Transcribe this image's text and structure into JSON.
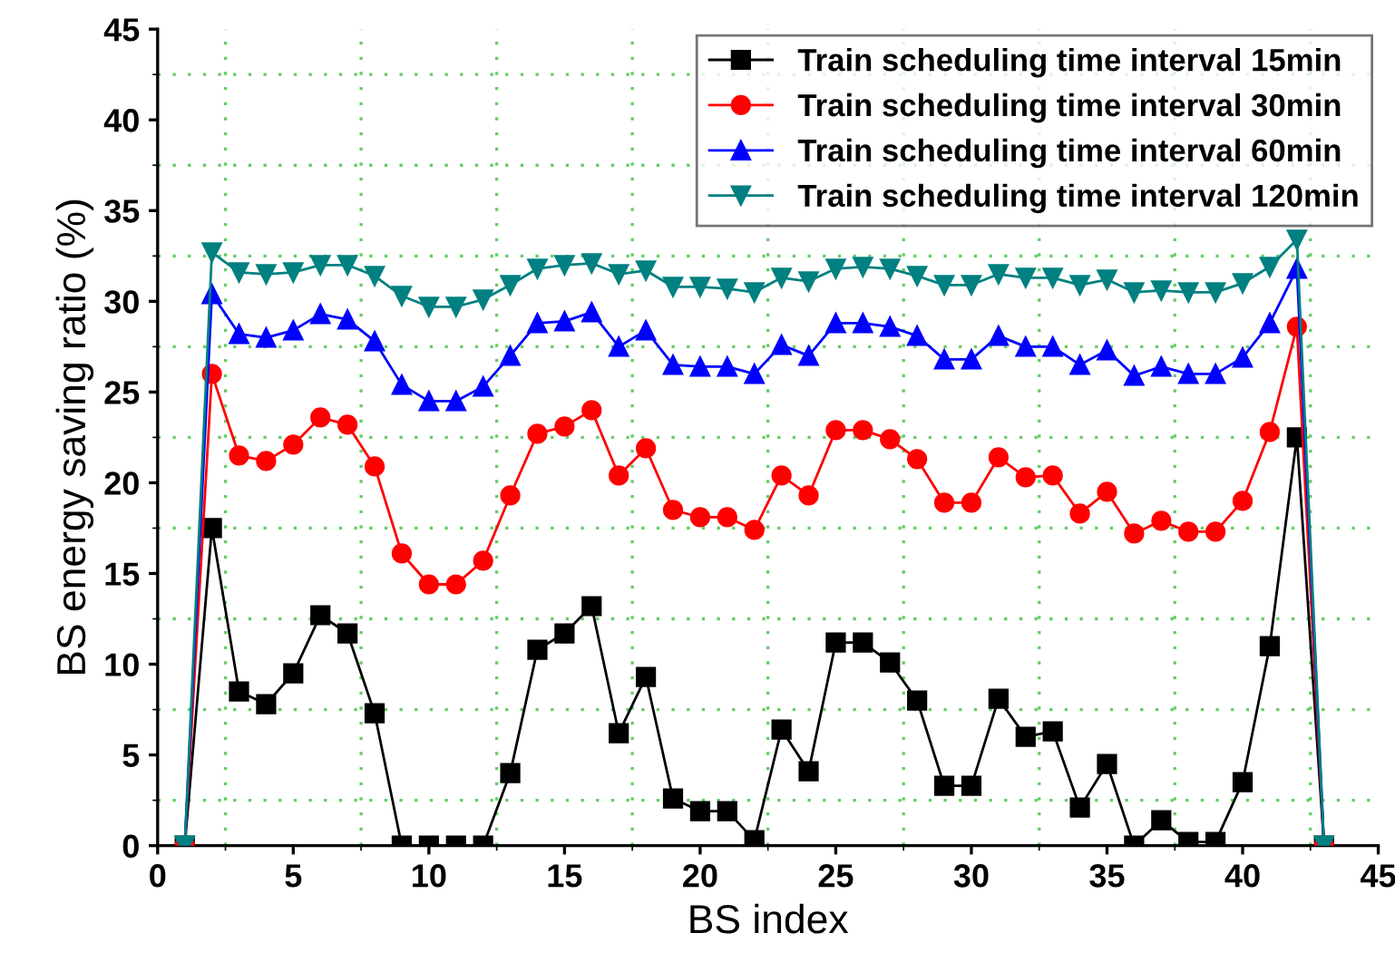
{
  "chart_data": {
    "type": "line",
    "xlabel": "BS index",
    "ylabel": "BS energy saving ratio (%)",
    "x": [
      1,
      2,
      3,
      4,
      5,
      6,
      7,
      8,
      9,
      10,
      11,
      12,
      13,
      14,
      15,
      16,
      17,
      18,
      19,
      20,
      21,
      22,
      23,
      24,
      25,
      26,
      27,
      28,
      29,
      30,
      31,
      32,
      33,
      34,
      35,
      36,
      37,
      38,
      39,
      40,
      41,
      42,
      43
    ],
    "series": [
      {
        "name": "Train scheduling time interval 15min",
        "color": "#000000",
        "marker": "square",
        "values": [
          0,
          17.5,
          8.5,
          7.8,
          9.5,
          12.7,
          11.7,
          7.3,
          0,
          0,
          0,
          0,
          4.0,
          10.8,
          11.7,
          13.2,
          6.2,
          9.3,
          2.6,
          1.9,
          1.9,
          0.3,
          6.4,
          4.1,
          11.2,
          11.2,
          10.1,
          8.0,
          3.3,
          3.3,
          8.1,
          6.0,
          6.3,
          2.1,
          4.5,
          0,
          1.4,
          0.2,
          0.2,
          3.5,
          11.0,
          22.5,
          0
        ]
      },
      {
        "name": "Train scheduling time interval 30min",
        "color": "#ff0000",
        "marker": "circle",
        "values": [
          0,
          26.0,
          21.5,
          21.2,
          22.1,
          23.6,
          23.2,
          20.9,
          16.1,
          14.4,
          14.4,
          15.7,
          19.3,
          22.7,
          23.1,
          24.0,
          20.4,
          21.9,
          18.5,
          18.1,
          18.1,
          17.4,
          20.4,
          19.3,
          22.9,
          22.9,
          22.4,
          21.3,
          18.9,
          18.9,
          21.4,
          20.3,
          20.4,
          18.3,
          19.5,
          17.2,
          17.9,
          17.3,
          17.3,
          19.0,
          22.8,
          28.6,
          0
        ]
      },
      {
        "name": "Train scheduling time interval 60min",
        "color": "#0000ff",
        "marker": "triangle",
        "values": [
          0,
          30.4,
          28.2,
          28.0,
          28.4,
          29.3,
          29.0,
          27.8,
          25.4,
          24.5,
          24.5,
          25.3,
          27.0,
          28.8,
          28.9,
          29.4,
          27.5,
          28.4,
          26.5,
          26.4,
          26.4,
          26.0,
          27.6,
          27.0,
          28.8,
          28.8,
          28.6,
          28.1,
          26.8,
          26.8,
          28.1,
          27.5,
          27.5,
          26.5,
          27.3,
          25.9,
          26.4,
          26.0,
          26.0,
          26.9,
          28.8,
          31.8,
          0
        ]
      },
      {
        "name": "Train scheduling time interval 120min",
        "color": "#008080",
        "marker": "triangle_down",
        "values": [
          0,
          32.7,
          31.6,
          31.5,
          31.6,
          32.0,
          32.0,
          31.4,
          30.3,
          29.7,
          29.7,
          30.1,
          30.9,
          31.8,
          32.0,
          32.1,
          31.5,
          31.7,
          30.8,
          30.8,
          30.7,
          30.5,
          31.3,
          31.1,
          31.8,
          31.9,
          31.8,
          31.4,
          30.9,
          30.9,
          31.5,
          31.3,
          31.3,
          30.9,
          31.2,
          30.5,
          30.6,
          30.5,
          30.5,
          31.0,
          31.9,
          33.4,
          0
        ]
      }
    ],
    "xlim": [
      0,
      45
    ],
    "xticks": [
      0,
      {
        "value": 2.5,
        "label": null
      },
      5,
      {
        "value": 7.5,
        "label": null
      },
      10,
      {
        "value": 12.5,
        "label": null
      },
      15,
      {
        "value": 17.5,
        "label": null
      },
      20,
      {
        "value": 22.5,
        "label": null
      },
      25,
      {
        "value": 27.5,
        "label": null
      },
      30,
      {
        "value": 32.5,
        "label": null
      },
      35,
      {
        "value": 37.5,
        "label": null
      },
      40,
      {
        "value": 42.5,
        "label": null
      },
      45
    ],
    "ylim": [
      0,
      45
    ],
    "yticks": [
      0,
      {
        "value": 2.5,
        "label": null
      },
      5,
      {
        "value": 7.5,
        "label": null
      },
      10,
      {
        "value": 12.5,
        "label": null
      },
      15,
      {
        "value": 17.5,
        "label": null
      },
      20,
      {
        "value": 22.5,
        "label": null
      },
      25,
      {
        "value": 27.5,
        "label": null
      },
      30,
      {
        "value": 32.5,
        "label": null
      },
      35,
      {
        "value": 37.5,
        "label": null
      },
      40,
      {
        "value": 42.5,
        "label": null
      },
      45
    ],
    "grid": true,
    "legend": "top right",
    "line_style": "solid"
  }
}
